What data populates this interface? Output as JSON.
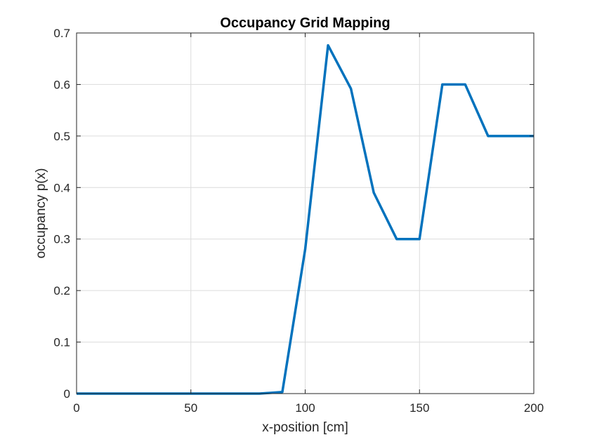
{
  "chart_data": {
    "type": "line",
    "title": "Occupancy Grid Mapping",
    "xlabel": "x-position [cm]",
    "ylabel": "occupancy p(x)",
    "xlim": [
      0,
      200
    ],
    "ylim": [
      0,
      0.7
    ],
    "xticks": [
      0,
      50,
      100,
      150,
      200
    ],
    "yticks": [
      0,
      0.1,
      0.2,
      0.3,
      0.4,
      0.5,
      0.6,
      0.7
    ],
    "grid": true,
    "legend": "none",
    "series": [
      {
        "color": "#0072BD",
        "x": [
          0,
          10,
          20,
          30,
          40,
          50,
          60,
          70,
          80,
          90,
          100,
          110,
          120,
          130,
          140,
          150,
          160,
          170,
          180,
          190,
          200
        ],
        "y": [
          0,
          0,
          0,
          0,
          0,
          0,
          0,
          0,
          0,
          0.003,
          0.28,
          0.676,
          0.592,
          0.39,
          0.3,
          0.3,
          0.6,
          0.6,
          0.5,
          0.5,
          0.5
        ]
      }
    ]
  }
}
